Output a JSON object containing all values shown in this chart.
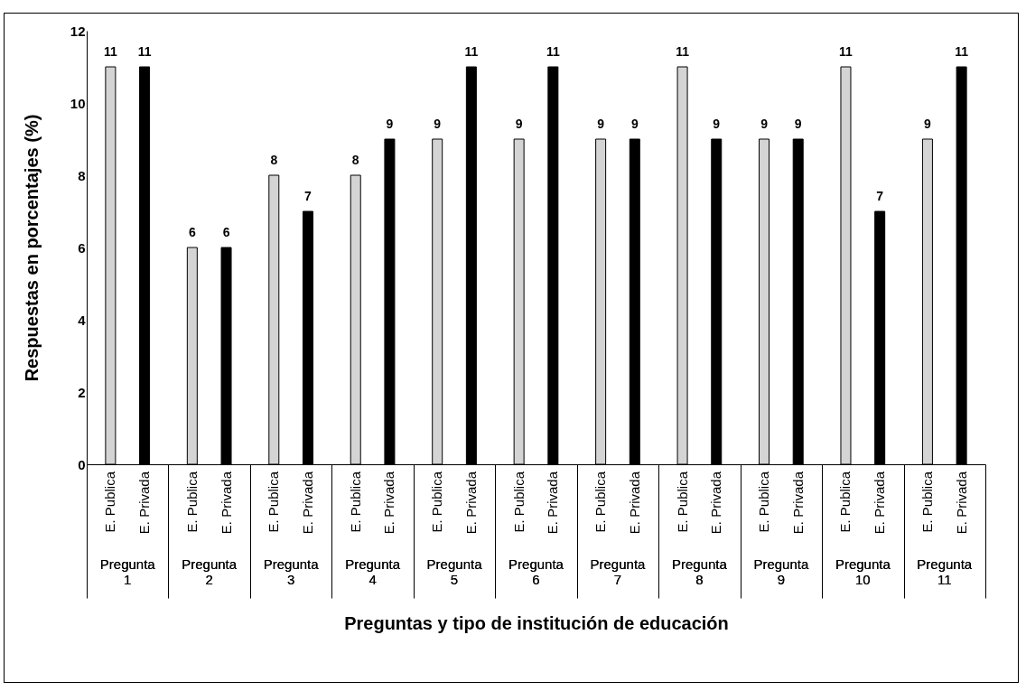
{
  "chart_data": {
    "type": "bar",
    "xlabel": "Preguntas y tipo de institución de educación",
    "ylabel": "Respuestas  en porcentajes (%)",
    "categories": [
      "Pregunta 1",
      "Pregunta 2",
      "Pregunta 3",
      "Pregunta 4",
      "Pregunta 5",
      "Pregunta 6",
      "Pregunta 7",
      "Pregunta 8",
      "Pregunta 9",
      "Pregunta 10",
      "Pregunta 11"
    ],
    "series": [
      {
        "name": "E. Publica",
        "color": "#d4d4d4",
        "values": [
          11,
          6,
          8,
          8,
          9,
          9,
          9,
          11,
          9,
          11,
          9
        ]
      },
      {
        "name": "E. Privada",
        "color": "#000000",
        "values": [
          11,
          6,
          7,
          9,
          11,
          11,
          9,
          9,
          9,
          7,
          11
        ]
      }
    ],
    "ylim": [
      0,
      12
    ],
    "yticks": [
      0,
      2,
      4,
      6,
      8,
      10,
      12
    ],
    "grid": false,
    "legend": false,
    "data_labels": true
  }
}
